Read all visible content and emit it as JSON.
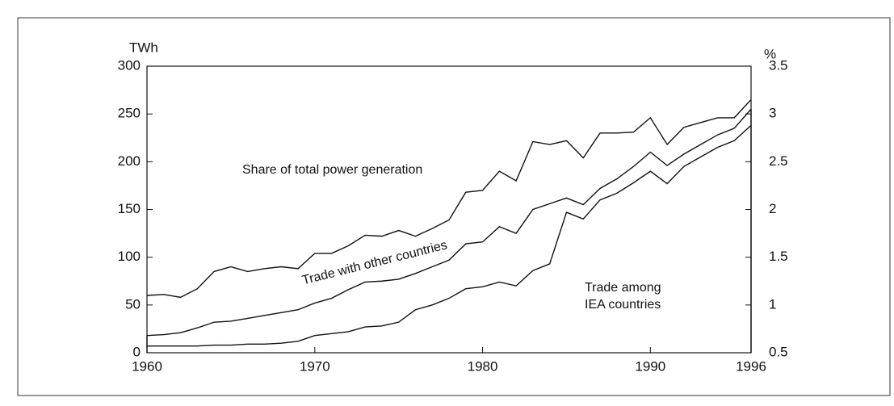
{
  "chart_data": {
    "type": "line",
    "y_label": "TWh",
    "y2_label": "%",
    "x": [
      1960,
      1961,
      1962,
      1963,
      1964,
      1965,
      1966,
      1967,
      1968,
      1969,
      1970,
      1971,
      1972,
      1973,
      1974,
      1975,
      1976,
      1977,
      1978,
      1979,
      1980,
      1981,
      1982,
      1983,
      1984,
      1985,
      1986,
      1987,
      1988,
      1989,
      1990,
      1991,
      1992,
      1993,
      1994,
      1995,
      1996
    ],
    "xlim": [
      1960,
      1996
    ],
    "xticks": [
      1960,
      1970,
      1980,
      1990,
      1996
    ],
    "ylim": [
      0,
      300
    ],
    "yticks": [
      0,
      50,
      100,
      150,
      200,
      250,
      300
    ],
    "y2lim": [
      0.5,
      3.5
    ],
    "y2ticks": [
      0.5,
      1,
      1.5,
      2,
      2.5,
      3,
      3.5
    ],
    "stacked": true,
    "series": [
      {
        "name": "Trade among IEA countries",
        "color": "#111111",
        "values": [
          7,
          7,
          7,
          7,
          8,
          8,
          9,
          9,
          10,
          12,
          18,
          20,
          22,
          27,
          28,
          32,
          45,
          50,
          57,
          67,
          69,
          74,
          70,
          86,
          93,
          147,
          140,
          160,
          167,
          178,
          190,
          177,
          195,
          205,
          215,
          222,
          238
        ]
      },
      {
        "name": "Trade with other countries",
        "color": "#111111",
        "values": [
          11,
          12,
          14,
          19,
          24,
          25,
          27,
          30,
          32,
          33,
          34,
          37,
          44,
          47,
          47,
          45,
          38,
          40,
          40,
          47,
          47,
          58,
          55,
          64,
          63,
          15,
          15,
          12,
          15,
          17,
          20,
          19,
          13,
          13,
          13,
          13,
          17
        ]
      },
      {
        "name": "Share of total power generation",
        "color": "#111111",
        "axis": "y2",
        "values": [
          1.1,
          1.11,
          1.08,
          1.17,
          1.35,
          1.4,
          1.35,
          1.38,
          1.4,
          1.38,
          1.54,
          1.54,
          1.62,
          1.73,
          1.72,
          1.78,
          1.72,
          1.8,
          1.89,
          2.18,
          2.2,
          2.4,
          2.3,
          2.71,
          2.68,
          2.72,
          2.54,
          2.8,
          2.8,
          2.81,
          2.96,
          2.68,
          2.86,
          2.91,
          2.96,
          2.96,
          3.15
        ]
      }
    ]
  }
}
